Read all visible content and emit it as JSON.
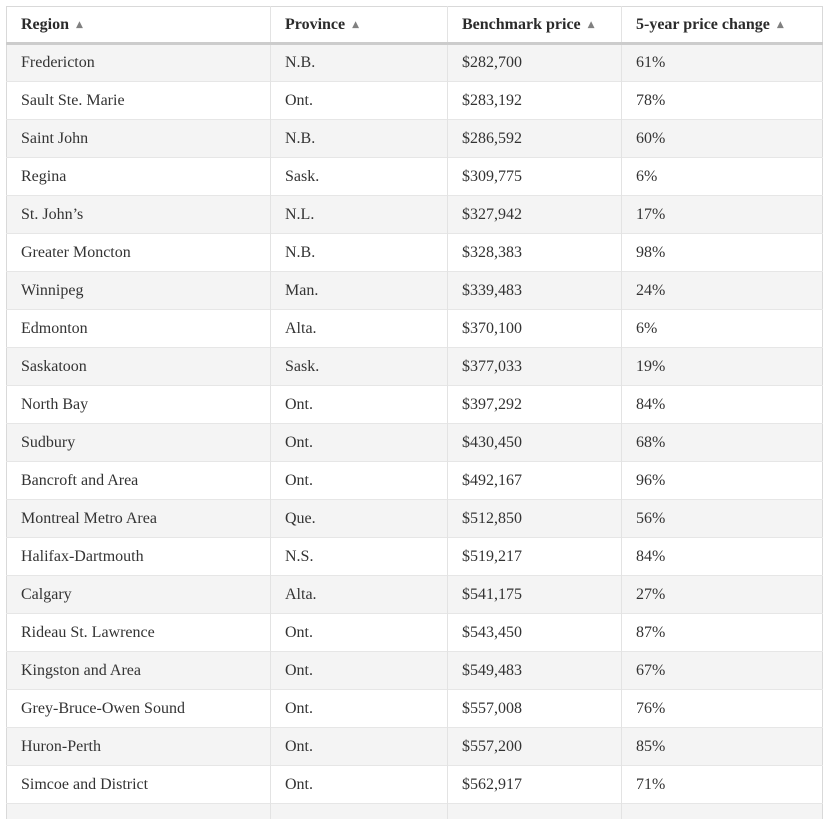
{
  "chart_data": {
    "type": "table",
    "columns": [
      "Region",
      "Province",
      "Benchmark price",
      "5-year price change"
    ],
    "rows": [
      {
        "region": "Fredericton",
        "province": "N.B.",
        "benchmark_price": "$282,700",
        "change": "61%"
      },
      {
        "region": "Sault Ste. Marie",
        "province": "Ont.",
        "benchmark_price": "$283,192",
        "change": "78%"
      },
      {
        "region": "Saint John",
        "province": "N.B.",
        "benchmark_price": "$286,592",
        "change": "60%"
      },
      {
        "region": "Regina",
        "province": "Sask.",
        "benchmark_price": "$309,775",
        "change": "6%"
      },
      {
        "region": "St. John’s",
        "province": "N.L.",
        "benchmark_price": "$327,942",
        "change": "17%"
      },
      {
        "region": "Greater Moncton",
        "province": "N.B.",
        "benchmark_price": "$328,383",
        "change": "98%"
      },
      {
        "region": "Winnipeg",
        "province": "Man.",
        "benchmark_price": "$339,483",
        "change": "24%"
      },
      {
        "region": "Edmonton",
        "province": "Alta.",
        "benchmark_price": "$370,100",
        "change": "6%"
      },
      {
        "region": "Saskatoon",
        "province": "Sask.",
        "benchmark_price": "$377,033",
        "change": "19%"
      },
      {
        "region": "North Bay",
        "province": "Ont.",
        "benchmark_price": "$397,292",
        "change": "84%"
      },
      {
        "region": "Sudbury",
        "province": "Ont.",
        "benchmark_price": "$430,450",
        "change": "68%"
      },
      {
        "region": "Bancroft and Area",
        "province": "Ont.",
        "benchmark_price": "$492,167",
        "change": "96%"
      },
      {
        "region": "Montreal Metro Area",
        "province": "Que.",
        "benchmark_price": "$512,850",
        "change": "56%"
      },
      {
        "region": "Halifax-Dartmouth",
        "province": "N.S.",
        "benchmark_price": "$519,217",
        "change": "84%"
      },
      {
        "region": "Calgary",
        "province": "Alta.",
        "benchmark_price": "$541,175",
        "change": "27%"
      },
      {
        "region": "Rideau St. Lawrence",
        "province": "Ont.",
        "benchmark_price": "$543,450",
        "change": "87%"
      },
      {
        "region": "Kingston and Area",
        "province": "Ont.",
        "benchmark_price": "$549,483",
        "change": "67%"
      },
      {
        "region": "Grey-Bruce-Owen Sound",
        "province": "Ont.",
        "benchmark_price": "$557,008",
        "change": "76%"
      },
      {
        "region": "Huron-Perth",
        "province": "Ont.",
        "benchmark_price": "$557,200",
        "change": "85%"
      },
      {
        "region": "Simcoe and District",
        "province": "Ont.",
        "benchmark_price": "$562,917",
        "change": "71%"
      }
    ],
    "benchmark_price_values": [
      282700,
      283192,
      286592,
      309775,
      327942,
      328383,
      339483,
      370100,
      377033,
      397292,
      430450,
      492167,
      512850,
      519217,
      541175,
      543450,
      549483,
      557008,
      557200,
      562917
    ],
    "change_pct_values": [
      61,
      78,
      60,
      6,
      17,
      98,
      24,
      6,
      19,
      84,
      68,
      96,
      56,
      84,
      27,
      87,
      67,
      76,
      85,
      71
    ],
    "sort": {
      "column": "Region",
      "direction": "ascending"
    }
  },
  "icons": {
    "sort_ascending": "▲"
  },
  "colors": {
    "page_background": "#ffffff",
    "zebra_row": "#f4f4f4",
    "table_border": "#d9d9d9",
    "cell_border": "#e3e3e3",
    "header_bottom_border": "#cccccc",
    "header_text": "#2b2b2b",
    "body_text": "#333333",
    "sort_icon": "#808080"
  }
}
